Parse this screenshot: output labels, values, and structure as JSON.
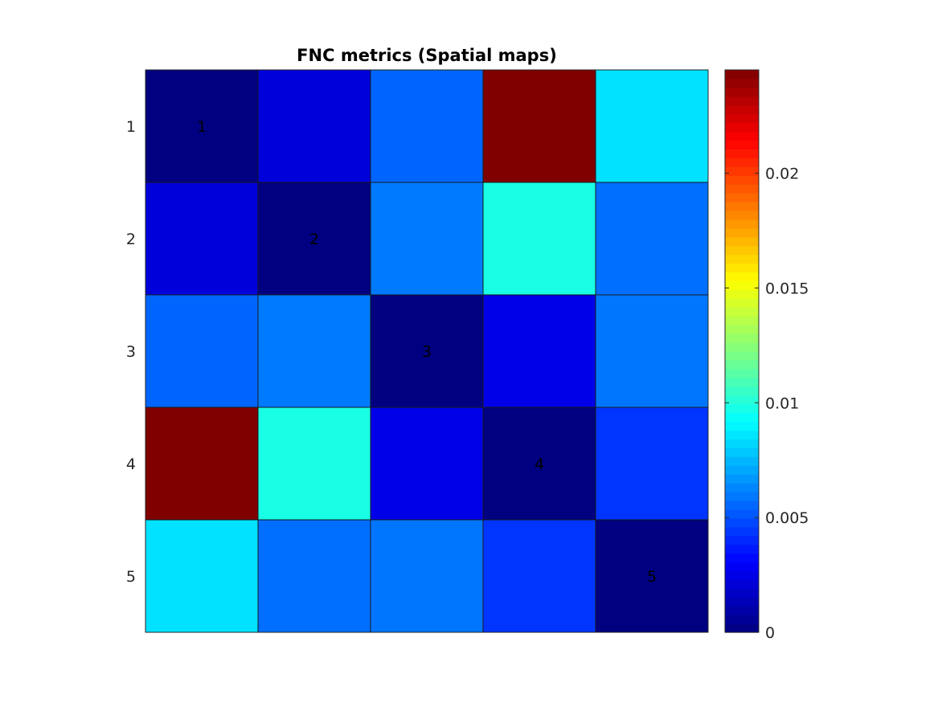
{
  "chart_data": {
    "type": "heatmap",
    "title": "FNC metrics (Spatial maps)",
    "row_labels": [
      "1",
      "2",
      "3",
      "4",
      "5"
    ],
    "col_labels": [],
    "cell_labels": [
      "1",
      "2",
      "3",
      "4",
      "5"
    ],
    "values": [
      [
        0.0,
        0.0022,
        0.0055,
        0.0245,
        0.0085
      ],
      [
        0.0022,
        0.0,
        0.006,
        0.0098,
        0.0057
      ],
      [
        0.0055,
        0.006,
        0.0,
        0.0025,
        0.0059
      ],
      [
        0.0245,
        0.0098,
        0.0025,
        0.0,
        0.0043
      ],
      [
        0.0085,
        0.0057,
        0.0059,
        0.0043,
        0.0
      ]
    ],
    "colormap": "jet",
    "clim": [
      0,
      0.0245
    ],
    "colorbar_ticks": [
      0,
      0.005,
      0.01,
      0.015,
      0.02
    ],
    "colorbar_tick_labels": [
      "0",
      "0.005",
      "0.01",
      "0.015",
      "0.02"
    ],
    "xlabel": "",
    "ylabel": "",
    "grid": false,
    "legend": "none"
  }
}
